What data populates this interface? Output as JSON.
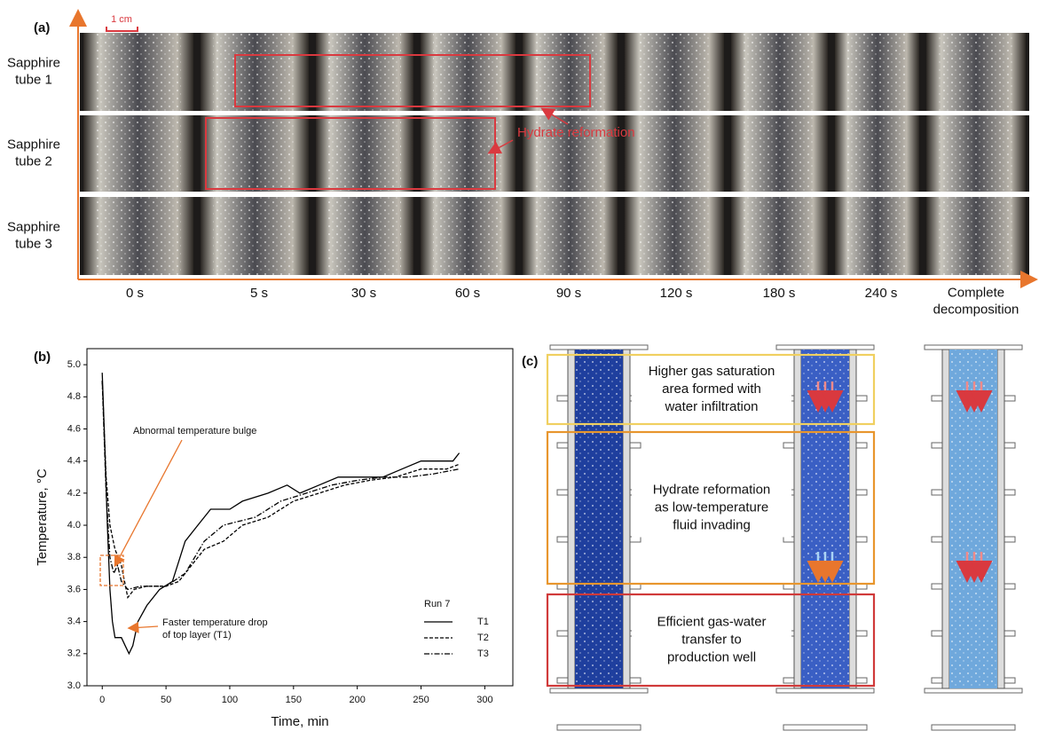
{
  "panel_a": {
    "label": "(a)",
    "scale": "1 cm",
    "rows": [
      [
        "Sapphire",
        "tube 1"
      ],
      [
        "Sapphire",
        "tube 2"
      ],
      [
        "Sapphire",
        "tube 3"
      ]
    ],
    "times": [
      "0 s",
      "5 s",
      "30 s",
      "60 s",
      "90 s",
      "120 s",
      "180 s",
      "240 s",
      [
        "Complete",
        "decomposition"
      ]
    ],
    "annotation": "Hydrate reformation"
  },
  "chart_data": {
    "type": "line",
    "panel_label": "(b)",
    "x_label": "Time, min",
    "y_label": "Temperature, °C",
    "xlim": [
      -12,
      322
    ],
    "ylim": [
      3.0,
      5.1
    ],
    "xticks": [
      0,
      50,
      100,
      150,
      200,
      250,
      300
    ],
    "yticks": [
      {
        "value": 3.0,
        "label": "3.0"
      },
      3.2,
      3.4,
      3.6,
      3.8,
      {
        "value": 4.0,
        "label": "4.0"
      },
      4.2,
      4.4,
      4.6,
      4.8,
      {
        "value": 5.0,
        "label": "5.0"
      }
    ],
    "legend_title": "Run 7",
    "legend_position": "lower right",
    "annotations": [
      [
        "Abnormal temperature bulge"
      ],
      [
        "Faster temperature drop",
        "of top layer (T1)"
      ]
    ],
    "series": [
      {
        "name": "T1",
        "color": "#000000",
        "dash": "solid",
        "x": [
          0,
          2,
          4,
          6,
          8,
          10,
          15,
          18,
          21,
          24,
          28,
          35,
          45,
          55,
          65,
          75,
          85,
          100,
          110,
          130,
          145,
          155,
          170,
          185,
          200,
          220,
          235,
          250,
          265,
          275,
          280
        ],
        "values": [
          4.95,
          4.5,
          4.0,
          3.6,
          3.4,
          3.3,
          3.3,
          3.25,
          3.2,
          3.25,
          3.4,
          3.5,
          3.6,
          3.65,
          3.9,
          4.0,
          4.1,
          4.1,
          4.15,
          4.2,
          4.25,
          4.2,
          4.25,
          4.3,
          4.3,
          4.3,
          4.35,
          4.4,
          4.4,
          4.4,
          4.45
        ]
      },
      {
        "name": "T2",
        "color": "#000000",
        "dash": "dashed",
        "x": [
          0,
          3,
          6,
          10,
          15,
          20,
          25,
          35,
          50,
          60,
          70,
          80,
          95,
          110,
          130,
          150,
          170,
          190,
          210,
          230,
          250,
          270,
          280
        ],
        "values": [
          4.9,
          4.3,
          4.0,
          3.85,
          3.75,
          3.55,
          3.6,
          3.62,
          3.62,
          3.65,
          3.75,
          3.85,
          3.9,
          4.0,
          4.05,
          4.15,
          4.2,
          4.25,
          4.28,
          4.3,
          4.35,
          4.35,
          4.38
        ]
      },
      {
        "name": "T3",
        "color": "#000000",
        "dash": "dashdot",
        "x": [
          0,
          3,
          6,
          9,
          12,
          15,
          20,
          30,
          50,
          65,
          80,
          95,
          120,
          140,
          160,
          180,
          200,
          220,
          240,
          260,
          280
        ],
        "values": [
          4.9,
          4.2,
          3.8,
          3.7,
          3.75,
          3.65,
          3.6,
          3.62,
          3.62,
          3.7,
          3.9,
          4.0,
          4.05,
          4.15,
          4.2,
          4.25,
          4.28,
          4.3,
          4.3,
          4.32,
          4.35
        ]
      }
    ]
  },
  "panel_c": {
    "label": "(c)",
    "boxes": [
      [
        "Higher gas saturation",
        "area formed with",
        "water infiltration"
      ],
      [
        "Hydrate reformation",
        "as low-temperature",
        "fluid invading"
      ],
      [
        "Efficient gas-water",
        "transfer to",
        "production well"
      ]
    ]
  }
}
